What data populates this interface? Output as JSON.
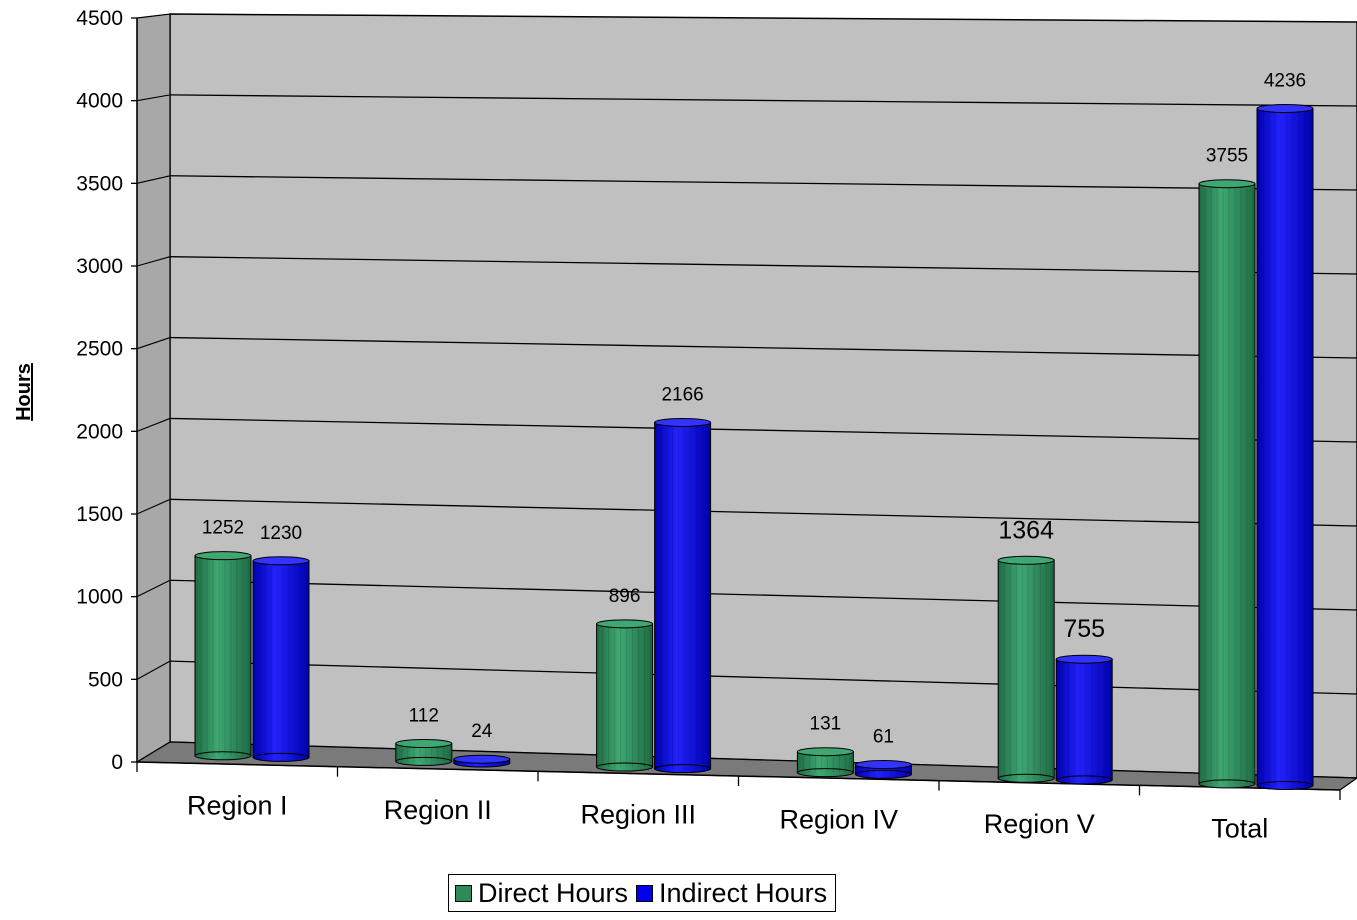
{
  "chart_data": {
    "type": "bar",
    "style": "3d-cylinder",
    "categories": [
      "Region I",
      "Region II",
      "Region III",
      "Region IV",
      "Region V",
      "Total"
    ],
    "series": [
      {
        "name": "Direct Hours",
        "values": [
          1252,
          112,
          896,
          131,
          1364,
          3755
        ],
        "color": "#2e8b57"
      },
      {
        "name": "Indirect Hours",
        "values": [
          1230,
          24,
          2166,
          61,
          755,
          4236
        ],
        "color": "#0000ee"
      }
    ],
    "data_labels": {
      "Direct Hours": [
        "1252",
        "112",
        "896",
        "131",
        "1364",
        "3755"
      ],
      "Indirect Hours": [
        "1230",
        "24",
        "2166",
        "61",
        "755",
        "4236"
      ]
    },
    "title": "",
    "xlabel": "",
    "ylabel": "Hours",
    "ylim": [
      0,
      4500
    ],
    "yticks": [
      0,
      500,
      1000,
      1500,
      2000,
      2500,
      3000,
      3500,
      4000,
      4500
    ],
    "grid": true,
    "wall_color": "#c0c0c0",
    "legend_position": "bottom"
  }
}
